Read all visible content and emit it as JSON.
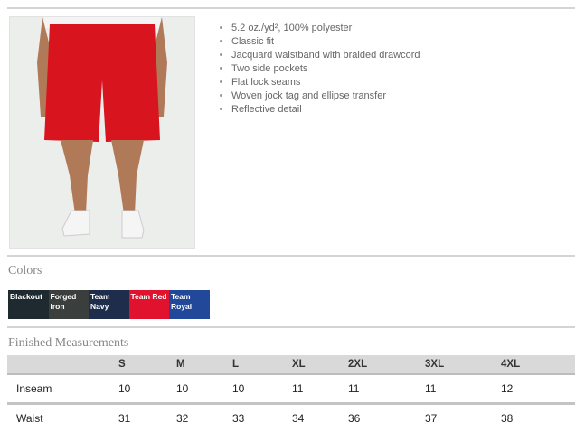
{
  "features": [
    "5.2 oz./yd², 100% polyester",
    "Classic fit",
    "Jacquard waistband with braided drawcord",
    "Two side pockets",
    "Flat lock seams",
    "Woven jock tag and ellipse transfer",
    "Reflective detail"
  ],
  "colors_title": "Colors",
  "colors": [
    {
      "name": "Blackout",
      "hex": "#1e2a30"
    },
    {
      "name": "Forged Iron",
      "hex": "#3a3f3d"
    },
    {
      "name": "Team Navy",
      "hex": "#1f2d4c"
    },
    {
      "name": "Team Red",
      "hex": "#e0122e"
    },
    {
      "name": "Team Royal",
      "hex": "#22489a"
    }
  ],
  "measurements_title": "Finished Measurements",
  "sizes": [
    "S",
    "M",
    "L",
    "XL",
    "2XL",
    "3XL",
    "4XL"
  ],
  "rows": [
    {
      "label": "Inseam",
      "values": [
        "10",
        "10",
        "10",
        "11",
        "11",
        "11",
        "12"
      ]
    },
    {
      "label": "Waist",
      "values": [
        "31",
        "32",
        "33",
        "34",
        "36",
        "37",
        "38"
      ]
    }
  ]
}
